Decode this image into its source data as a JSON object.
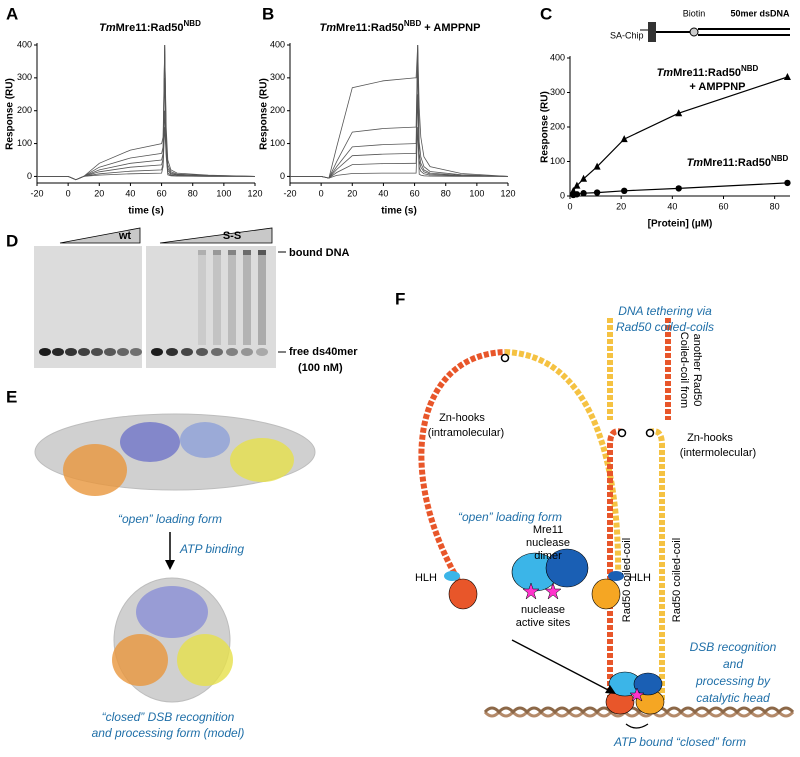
{
  "panel_labels": [
    "A",
    "B",
    "C",
    "D",
    "E",
    "F"
  ],
  "chart_data": [
    {
      "type": "line",
      "title": [
        "Tm",
        "Mre11:Rad50",
        "NBD"
      ],
      "x_label": "time (s)",
      "y_label": "Response (RU)",
      "color": "#555555",
      "x": [
        -20,
        -10,
        0,
        5,
        10,
        20,
        40,
        60,
        61,
        62,
        63,
        64,
        66,
        70,
        90,
        120
      ],
      "series": [
        {
          "values": [
            0,
            0,
            0,
            -10,
            0,
            4,
            8,
            10,
            30,
            150,
            60,
            5,
            2,
            1,
            0,
            0
          ]
        },
        {
          "values": [
            0,
            0,
            0,
            -10,
            0,
            8,
            16,
            20,
            40,
            200,
            70,
            10,
            4,
            2,
            0,
            0
          ]
        },
        {
          "values": [
            0,
            0,
            0,
            -10,
            0,
            14,
            28,
            35,
            55,
            300,
            85,
            18,
            7,
            4,
            1,
            0
          ]
        },
        {
          "values": [
            0,
            0,
            0,
            -10,
            0,
            20,
            40,
            50,
            70,
            400,
            100,
            25,
            10,
            5,
            2,
            0
          ]
        },
        {
          "values": [
            0,
            0,
            0,
            -10,
            0,
            28,
            56,
            70,
            90,
            400,
            120,
            35,
            14,
            7,
            3,
            0
          ]
        },
        {
          "values": [
            0,
            0,
            0,
            -10,
            0,
            40,
            80,
            100,
            120,
            400,
            150,
            50,
            20,
            10,
            4,
            0
          ]
        }
      ],
      "xlim": [
        -20,
        120
      ],
      "xticks": [
        -20,
        0,
        20,
        40,
        60,
        80,
        100,
        120
      ],
      "ylim": [
        -20,
        400
      ],
      "yticks": [
        0,
        100,
        200,
        300,
        400
      ]
    },
    {
      "type": "line",
      "title": [
        "Tm",
        "Mre11:Rad50",
        "NBD",
        " + AMPPNP"
      ],
      "x_label": "time (s)",
      "y_label": "Response (RU)",
      "color": "#555555",
      "x": [
        -20,
        -10,
        0,
        5,
        10,
        20,
        40,
        60,
        61,
        62,
        63,
        64,
        66,
        70,
        90,
        120
      ],
      "series": [
        {
          "values": [
            0,
            0,
            0,
            -5,
            3,
            9,
            10,
            10,
            10,
            150,
            7,
            4,
            2,
            1,
            0,
            0
          ]
        },
        {
          "values": [
            0,
            0,
            0,
            -5,
            12,
            36,
            39,
            40,
            40,
            250,
            28,
            16,
            8,
            4,
            1,
            0
          ]
        },
        {
          "values": [
            0,
            0,
            0,
            -5,
            21,
            63,
            68,
            70,
            70,
            350,
            49,
            28,
            14,
            7,
            2,
            0
          ]
        },
        {
          "values": [
            0,
            0,
            0,
            -5,
            30,
            90,
            97,
            100,
            100,
            400,
            70,
            40,
            20,
            10,
            3,
            0
          ]
        },
        {
          "values": [
            0,
            0,
            0,
            -5,
            45,
            135,
            146,
            150,
            150,
            400,
            105,
            60,
            30,
            15,
            5,
            0
          ]
        },
        {
          "values": [
            0,
            0,
            0,
            -5,
            90,
            270,
            291,
            300,
            300,
            400,
            210,
            120,
            60,
            30,
            9,
            0
          ]
        }
      ],
      "xlim": [
        -20,
        120
      ],
      "xticks": [
        -20,
        0,
        20,
        40,
        60,
        80,
        100,
        120
      ],
      "ylim": [
        -20,
        400
      ],
      "yticks": [
        0,
        100,
        200,
        300,
        400
      ]
    },
    {
      "type": "line",
      "x_label": "[Protein] (µM)",
      "y_label": "Response (RU)",
      "x": [
        1.3,
        2.7,
        5.3,
        10.6,
        21.2,
        42.5,
        85
      ],
      "series": [
        {
          "label": [
            "Tm",
            "Mre11:Rad50",
            "NBD",
            "+ AMPPNP"
          ],
          "marker": "triangle",
          "color": "#000000",
          "values": [
            15,
            30,
            50,
            85,
            165,
            240,
            345
          ]
        },
        {
          "label": [
            "Tm",
            "Mre11:Rad50",
            "NBD"
          ],
          "marker": "circle",
          "color": "#000000",
          "values": [
            3,
            5,
            8,
            10,
            15,
            22,
            38
          ]
        }
      ],
      "xlim": [
        0,
        86
      ],
      "xticks": [
        0,
        20,
        40,
        60,
        80
      ],
      "ylim": [
        0,
        400
      ],
      "yticks": [
        0,
        100,
        200,
        300,
        400
      ],
      "inset": {
        "chip": "SA-Chip",
        "biotin": "Biotin",
        "dna": "50mer dsDNA"
      }
    }
  ],
  "gel": {
    "left_lanes": "wt",
    "right_lanes": "S-S",
    "bound": "bound DNA",
    "free": "free ds40mer",
    "concentration": "(100 nM)"
  },
  "structure": {
    "open": "“open” loading form",
    "transition": "ATP binding",
    "closed": [
      "“closed” DSB recognition",
      "and processing form (model)"
    ]
  },
  "diagram": {
    "tethering": [
      "DNA tethering via",
      "Rad50 coiled-coils"
    ],
    "hooks_intra": [
      "Zn-hooks",
      "(intramolecular)"
    ],
    "coil_other": [
      "Coiled-coil from",
      "another Rad50"
    ],
    "hooks_inter": [
      "Zn-hooks",
      "(intermolecular)"
    ],
    "open_form": "“open” loading form",
    "mre11": [
      "Mre11",
      "nuclease",
      "dimer"
    ],
    "hlh": [
      "HLH",
      "HLH"
    ],
    "active_sites": [
      "nuclease",
      "active sites"
    ],
    "coiled_coil": [
      "Rad50 coiled-coil",
      "Rad50 coiled-coil"
    ],
    "dsb": [
      "DSB recognition",
      "and",
      "processing by",
      "catalytic head"
    ],
    "closed_form": "ATP bound “closed” form"
  }
}
